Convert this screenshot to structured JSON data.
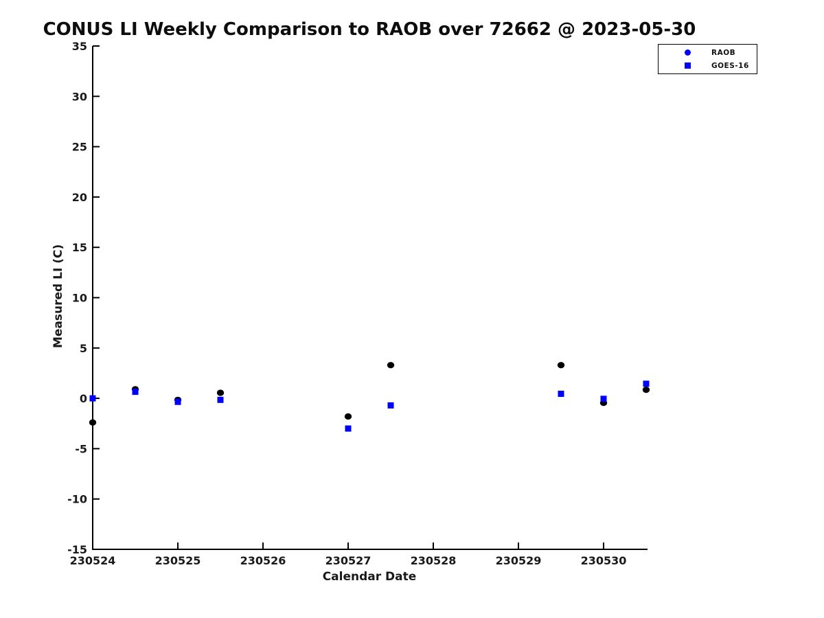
{
  "chart_data": {
    "type": "scatter",
    "title": "CONUS LI Weekly Comparison to RAOB over 72662 @ 2023-05-30",
    "xlabel": "Calendar Date",
    "ylabel": "Measured LI (C)",
    "xlim": [
      230524,
      230530.5
    ],
    "ylim": [
      -15,
      35
    ],
    "xticks": [
      230524,
      230525,
      230526,
      230527,
      230528,
      230529,
      230530
    ],
    "xtick_labels": [
      "230524",
      "230525",
      "230526",
      "230527",
      "230528",
      "230529",
      "230530"
    ],
    "yticks": [
      -15,
      -10,
      -5,
      0,
      5,
      10,
      15,
      20,
      25,
      30,
      35
    ],
    "ytick_labels": [
      "-15",
      "-10",
      "-5",
      "0",
      "5",
      "10",
      "15",
      "20",
      "25",
      "30",
      "35"
    ],
    "grid": false,
    "legend_position": "top-right",
    "axis_color": "#000000",
    "x": [
      230524,
      230524.5,
      230525,
      230525.5,
      230527,
      230527.5,
      230529.5,
      230530,
      230530.5
    ],
    "series": [
      {
        "name": "RAOB",
        "marker": "circle",
        "plot_color": "#000000",
        "legend_color": "#0000ff",
        "values": [
          -2.4,
          0.9,
          -0.15,
          0.55,
          -1.8,
          3.3,
          3.3,
          -0.45,
          0.85
        ]
      },
      {
        "name": "GOES-16",
        "marker": "square",
        "plot_color": "#0000ff",
        "legend_color": "#0000ff",
        "values": [
          0.0,
          0.65,
          -0.35,
          -0.15,
          -3.0,
          -0.7,
          0.45,
          -0.05,
          1.45
        ]
      }
    ]
  }
}
